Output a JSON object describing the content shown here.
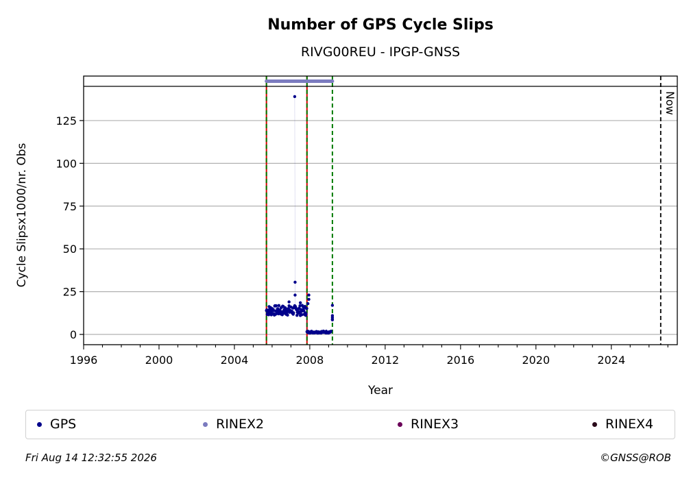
{
  "chart_data": {
    "type": "scatter",
    "title": "Number of GPS Cycle Slips",
    "subtitle": "RIVG00REU - IPGP-GNSS",
    "xlabel": "Year",
    "ylabel": "Cycle Slipsx1000/nr. Obs",
    "xlim": [
      1996,
      2027.5
    ],
    "ylim": [
      -6,
      151
    ],
    "x_ticks": [
      "1996",
      "2000",
      "2004",
      "2008",
      "2012",
      "2016",
      "2020",
      "2024"
    ],
    "y_ticks": [
      "0",
      "25",
      "50",
      "75",
      "100",
      "125"
    ],
    "grid": "y",
    "header_band": {
      "from": 145,
      "to": 151
    },
    "now_line": {
      "x": 2026.62,
      "label": "Now"
    },
    "vertical_lines": [
      {
        "x": 2005.7,
        "style": "red-green-dashed"
      },
      {
        "x": 2007.85,
        "style": "red-green-dashed"
      },
      {
        "x": 2009.2,
        "style": "green-dashed"
      }
    ],
    "rinex2_span": {
      "from": 2005.7,
      "to": 2009.2,
      "y": 148
    },
    "series": [
      {
        "name": "GPS",
        "color": "#00008b",
        "segments": [
          {
            "from": 2005.7,
            "to": 2007.85,
            "low": 11,
            "high": 17,
            "step": 0.02
          },
          {
            "from": 2007.85,
            "to": 2009.15,
            "low": 0.8,
            "high": 2,
            "step": 0.025
          }
        ],
        "points": [
          [
            2007.2,
            139
          ],
          [
            2007.22,
            30.5
          ],
          [
            2007.22,
            23
          ],
          [
            2007.95,
            23
          ],
          [
            2007.95,
            20.5
          ],
          [
            2007.9,
            18
          ],
          [
            2009.2,
            17
          ],
          [
            2009.2,
            11
          ],
          [
            2009.2,
            10
          ],
          [
            2009.2,
            9
          ],
          [
            2009.2,
            8.5
          ],
          [
            2006.9,
            19
          ],
          [
            2007.5,
            18.5
          ]
        ]
      }
    ],
    "legend": [
      {
        "name": "GPS",
        "color": "#00008b"
      },
      {
        "name": "RINEX2",
        "color": "#7b7bbf"
      },
      {
        "name": "RINEX3",
        "color": "#6b0059"
      },
      {
        "name": "RINEX4",
        "color": "#2a0a1a"
      }
    ]
  },
  "footer": {
    "timestamp": "Fri Aug 14 12:32:55 2026",
    "credit": "©GNSS@ROB"
  }
}
